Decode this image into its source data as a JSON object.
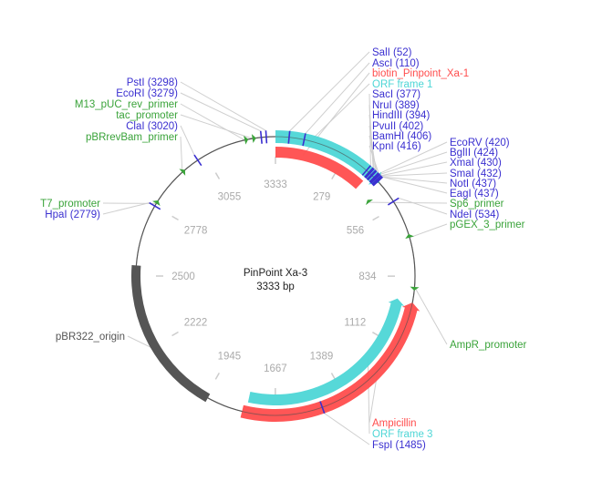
{
  "plasmid": {
    "name": "PinPoint Xa-3",
    "size_label": "3333 bp",
    "length": 3333
  },
  "ticks": [
    279,
    556,
    834,
    1112,
    1389,
    1667,
    1945,
    2222,
    2500,
    2778,
    3055,
    3333
  ],
  "features": [
    {
      "id": "orf1",
      "label": "ORF frame 1",
      "type": "orf",
      "start": 0,
      "end": 445,
      "dir": 1,
      "color": "#4dd6d6"
    },
    {
      "id": "biotin",
      "label": "biotin_Pinpoint_Xa-1",
      "type": "gene",
      "start": 0,
      "end": 395,
      "dir": 0,
      "color": "#ff4d4d"
    },
    {
      "id": "amp",
      "label": "Ampicillin",
      "type": "gene",
      "start": 935,
      "end": 1795,
      "dir": -1,
      "color": "#ff4d4d"
    },
    {
      "id": "orf3",
      "label": "ORF frame 3",
      "type": "orf",
      "start": 930,
      "end": 1780,
      "dir": -1,
      "color": "#4dd6d6"
    },
    {
      "id": "ori",
      "label": "pBR322_origin",
      "type": "origin",
      "start": 1935,
      "end": 2540,
      "dir": 0,
      "color": "#555555"
    }
  ],
  "primers": [
    {
      "label": "M13_pUC_rev_primer",
      "pos": 3215,
      "dir": 1
    },
    {
      "label": "tac_promoter",
      "pos": 3245,
      "dir": 1
    },
    {
      "label": "pBRrevBam_primer",
      "pos": 2945,
      "dir": 1
    },
    {
      "label": "T7_promoter",
      "pos": 2790,
      "dir": 1
    },
    {
      "label": "Sp6_primer",
      "pos": 480,
      "dir": -1
    },
    {
      "label": "pGEX_3_primer",
      "pos": 685,
      "dir": -1
    },
    {
      "label": "AmpR_promoter",
      "pos": 875,
      "dir": 1
    }
  ],
  "sites": [
    {
      "label": "PstI (3298)",
      "pos": 3298
    },
    {
      "label": "EcoRI (3279)",
      "pos": 3279
    },
    {
      "label": "ClaI (3020)",
      "pos": 3020
    },
    {
      "label": "HpaI (2779)",
      "pos": 2779
    },
    {
      "label": "SalI (52)",
      "pos": 52
    },
    {
      "label": "AscI (110)",
      "pos": 110
    },
    {
      "label": "SacI (377)",
      "pos": 377
    },
    {
      "label": "NruI (389)",
      "pos": 389
    },
    {
      "label": "HindIII (394)",
      "pos": 394
    },
    {
      "label": "PvuII (402)",
      "pos": 402
    },
    {
      "label": "BamHI (406)",
      "pos": 406
    },
    {
      "label": "KpnI (416)",
      "pos": 416
    },
    {
      "label": "EcoRV (420)",
      "pos": 420
    },
    {
      "label": "BglII (424)",
      "pos": 424
    },
    {
      "label": "XmaI (430)",
      "pos": 430
    },
    {
      "label": "SmaI (432)",
      "pos": 432
    },
    {
      "label": "NotI (437)",
      "pos": 437
    },
    {
      "label": "EagI (437)",
      "pos": 437
    },
    {
      "label": "NdeI (534)",
      "pos": 534
    },
    {
      "label": "FspI (1485)",
      "pos": 1485
    }
  ],
  "colors": {
    "site": "#3a2fd0",
    "primer": "#3aa33a",
    "tick": "#aaaaaa",
    "backbone": "#555555"
  }
}
